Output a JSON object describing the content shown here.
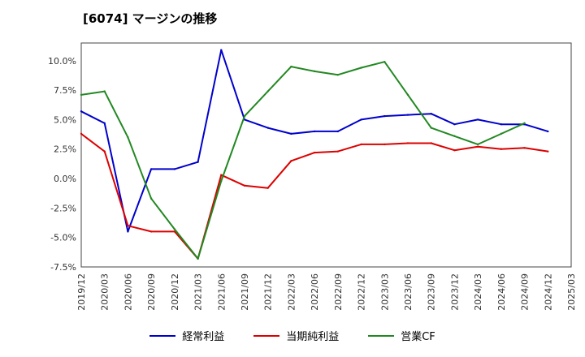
{
  "title": "[6074]  マージンの推移",
  "chart_data": {
    "type": "line",
    "ylim": [
      -7.5,
      11.5
    ],
    "y_ticks": [
      -7.5,
      -5.0,
      -2.5,
      0.0,
      2.5,
      5.0,
      7.5,
      10.0
    ],
    "y_tick_labels": [
      "-7.5%",
      "-5.0%",
      "-2.5%",
      "0.0%",
      "2.5%",
      "5.0%",
      "7.5%",
      "10.0%"
    ],
    "categories": [
      "2019/12",
      "2020/03",
      "2020/06",
      "2020/09",
      "2020/12",
      "2021/03",
      "2021/06",
      "2021/09",
      "2021/12",
      "2022/03",
      "2022/06",
      "2022/09",
      "2022/12",
      "2023/03",
      "2023/06",
      "2023/09",
      "2023/12",
      "2024/03",
      "2024/06",
      "2024/09",
      "2024/12",
      "2025/03"
    ],
    "grid": true,
    "legend_position": "bottom",
    "series": [
      {
        "name": "経常利益",
        "color": "#0000cc",
        "values": [
          5.7,
          4.7,
          -4.5,
          0.8,
          0.8,
          1.4,
          10.9,
          5.0,
          4.3,
          3.8,
          4.0,
          4.0,
          5.0,
          5.3,
          5.4,
          5.5,
          4.6,
          5.0,
          4.6,
          4.6,
          4.0,
          null
        ]
      },
      {
        "name": "当期純利益",
        "color": "#dd0000",
        "values": [
          3.8,
          2.3,
          -4.0,
          -4.5,
          -4.5,
          -6.8,
          0.3,
          -0.6,
          -0.8,
          1.5,
          2.2,
          2.3,
          2.9,
          2.9,
          3.0,
          3.0,
          2.4,
          2.7,
          2.5,
          2.6,
          2.3,
          null
        ]
      },
      {
        "name": "営業CF",
        "color": "#228822",
        "values": [
          7.1,
          7.4,
          3.5,
          -1.7,
          -4.3,
          -6.8,
          -0.2,
          5.3,
          7.4,
          9.5,
          9.1,
          8.8,
          9.4,
          9.9,
          7.1,
          4.3,
          3.6,
          2.9,
          3.8,
          4.7,
          null,
          null
        ]
      }
    ]
  }
}
